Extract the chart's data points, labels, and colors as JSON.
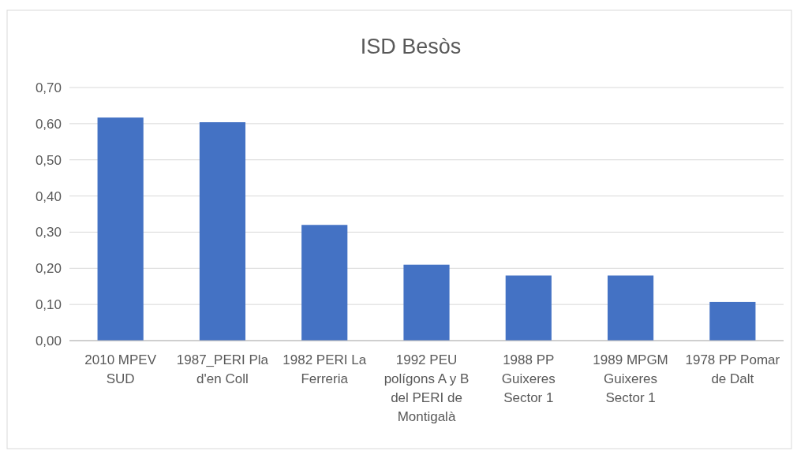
{
  "chart_data": {
    "type": "bar",
    "title": "ISD Besòs",
    "categories": [
      "2010 MPEV SUD",
      "1987_PERI Pla d'en Coll",
      "1982 PERI La Ferreria",
      "1992 PEU polígons A y B del PERI de Montigalà",
      "1988 PP Guixeres Sector 1",
      "1989 MPGM Guixeres Sector 1",
      "1978 PP Pomar de Dalt"
    ],
    "values": [
      0.617,
      0.604,
      0.32,
      0.21,
      0.18,
      0.18,
      0.107
    ],
    "color": "#4472c4",
    "ylim": [
      0,
      0.7
    ],
    "yticks": [
      {
        "value": 0,
        "label": "0,00"
      },
      {
        "value": 0.1,
        "label": "0,10"
      },
      {
        "value": 0.2,
        "label": "0,20"
      },
      {
        "value": 0.3,
        "label": "0,30"
      },
      {
        "value": 0.4,
        "label": "0,40"
      },
      {
        "value": 0.5,
        "label": "0,50"
      },
      {
        "value": 0.6,
        "label": "0,60"
      },
      {
        "value": 0.7,
        "label": "0,70"
      }
    ],
    "grid": "y"
  }
}
